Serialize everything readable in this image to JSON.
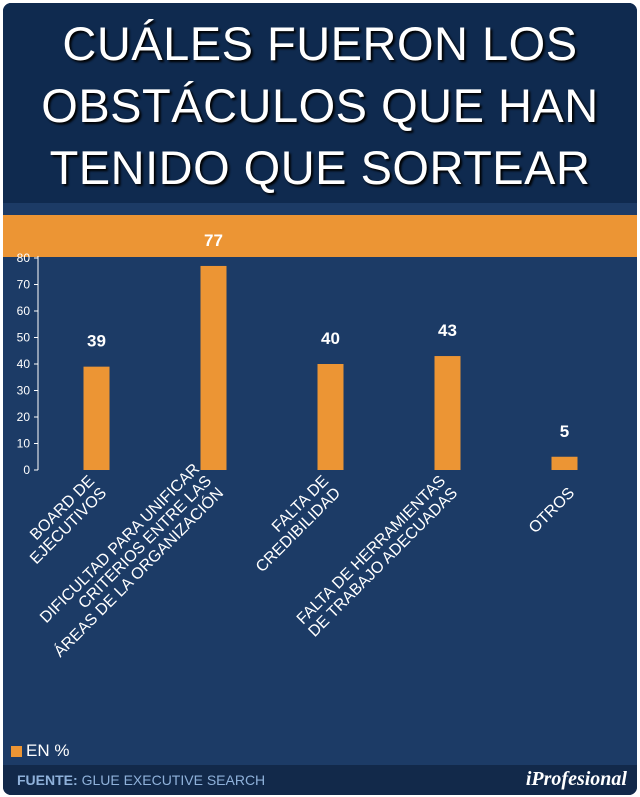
{
  "title_lines": [
    "CUÁLES FUERON LOS",
    "OBSTÁCULOS QUE HAN",
    "TENIDO QUE SORTEAR"
  ],
  "legend_label": "EN %",
  "source_label": "FUENTE:",
  "source_text": "GLUE EXECUTIVE SEARCH",
  "logo_text": "iProfesional",
  "colors": {
    "bar": "#ec9534",
    "background": "#1c3b66",
    "title_box": "#0f2a4f",
    "text": "#ffffff"
  },
  "chart_data": {
    "type": "bar",
    "title": "CUÁLES FUERON LOS OBSTÁCULOS QUE HAN TENIDO QUE SORTEAR",
    "categories": [
      [
        "BOARD DE",
        "EJECUTIVOS"
      ],
      [
        "DIFICULTAD PARA UNIFICAR",
        "CRITERIOS ENTRE LAS",
        "ÁREAS DE LA ORGANIZACIÓN"
      ],
      [
        "FALTA DE",
        "CREDIBILIDAD"
      ],
      [
        "FALTA DE HERRAMIENTAS",
        "DE TRABAJO ADECUADAS"
      ],
      [
        "OTROS"
      ]
    ],
    "series": [
      {
        "name": "EN %",
        "values": [
          39,
          77,
          40,
          43,
          5
        ]
      }
    ],
    "ylim": [
      0,
      80
    ],
    "yticks": [
      0,
      10,
      20,
      30,
      40,
      50,
      60,
      70,
      80
    ],
    "grid": false,
    "legend": "bottom-left"
  }
}
